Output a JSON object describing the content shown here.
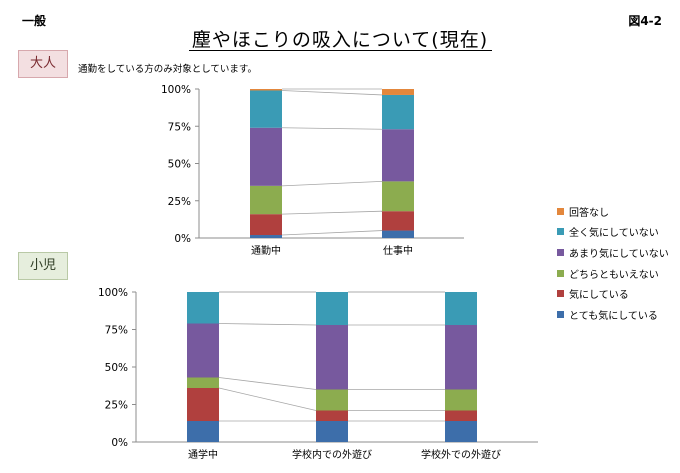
{
  "header": {
    "corner_left": "一般",
    "corner_right": "図4-2",
    "title": "塵やほこりの吸入について(現在)"
  },
  "tags": {
    "adult": "大人",
    "child": "小児"
  },
  "note": "通勤をしている方のみ対象としています。",
  "legend": {
    "items": [
      {
        "label": "回答なし",
        "color": "#e3873c"
      },
      {
        "label": "全く気にしていない",
        "color": "#3a9bb5"
      },
      {
        "label": "あまり気にしていない",
        "color": "#77599e"
      },
      {
        "label": "どちらともいえない",
        "color": "#8cac4f"
      },
      {
        "label": "気にしている",
        "color": "#b0403e"
      },
      {
        "label": "とても気にしている",
        "color": "#3d6eaa"
      }
    ]
  },
  "chart_data": [
    {
      "type": "bar",
      "stacked": true,
      "percent_scale": true,
      "categories": [
        "通勤中",
        "仕事中"
      ],
      "yticks": [
        "0%",
        "25%",
        "50%",
        "75%",
        "100%"
      ],
      "ylim": [
        0,
        100
      ],
      "series": [
        {
          "name": "とても気にしている",
          "color": "#3d6eaa",
          "values": [
            2,
            5
          ]
        },
        {
          "name": "気にしている",
          "color": "#b0403e",
          "values": [
            14,
            13
          ]
        },
        {
          "name": "どちらともいえない",
          "color": "#8cac4f",
          "values": [
            19,
            20
          ]
        },
        {
          "name": "あまり気にしていない",
          "color": "#77599e",
          "values": [
            39,
            35
          ]
        },
        {
          "name": "全く気にしていない",
          "color": "#3a9bb5",
          "values": [
            25,
            23
          ]
        },
        {
          "name": "回答なし",
          "color": "#e3873c",
          "values": [
            1,
            4
          ]
        }
      ],
      "gridlines": false
    },
    {
      "type": "bar",
      "stacked": true,
      "percent_scale": true,
      "categories": [
        "通学中",
        "学校内での外遊び",
        "学校外での外遊び"
      ],
      "yticks": [
        "0%",
        "25%",
        "50%",
        "75%",
        "100%"
      ],
      "ylim": [
        0,
        100
      ],
      "series": [
        {
          "name": "とても気にしている",
          "color": "#3d6eaa",
          "values": [
            14,
            14,
            14
          ]
        },
        {
          "name": "気にしている",
          "color": "#b0403e",
          "values": [
            22,
            7,
            7
          ]
        },
        {
          "name": "どちらともいえない",
          "color": "#8cac4f",
          "values": [
            7,
            14,
            14
          ]
        },
        {
          "name": "あまり気にしていない",
          "color": "#77599e",
          "values": [
            36,
            43,
            43
          ]
        },
        {
          "name": "全く気にしていない",
          "color": "#3a9bb5",
          "values": [
            21,
            22,
            22
          ]
        },
        {
          "name": "回答なし",
          "color": "#e3873c",
          "values": [
            0,
            0,
            0
          ]
        }
      ],
      "gridlines": false
    }
  ]
}
